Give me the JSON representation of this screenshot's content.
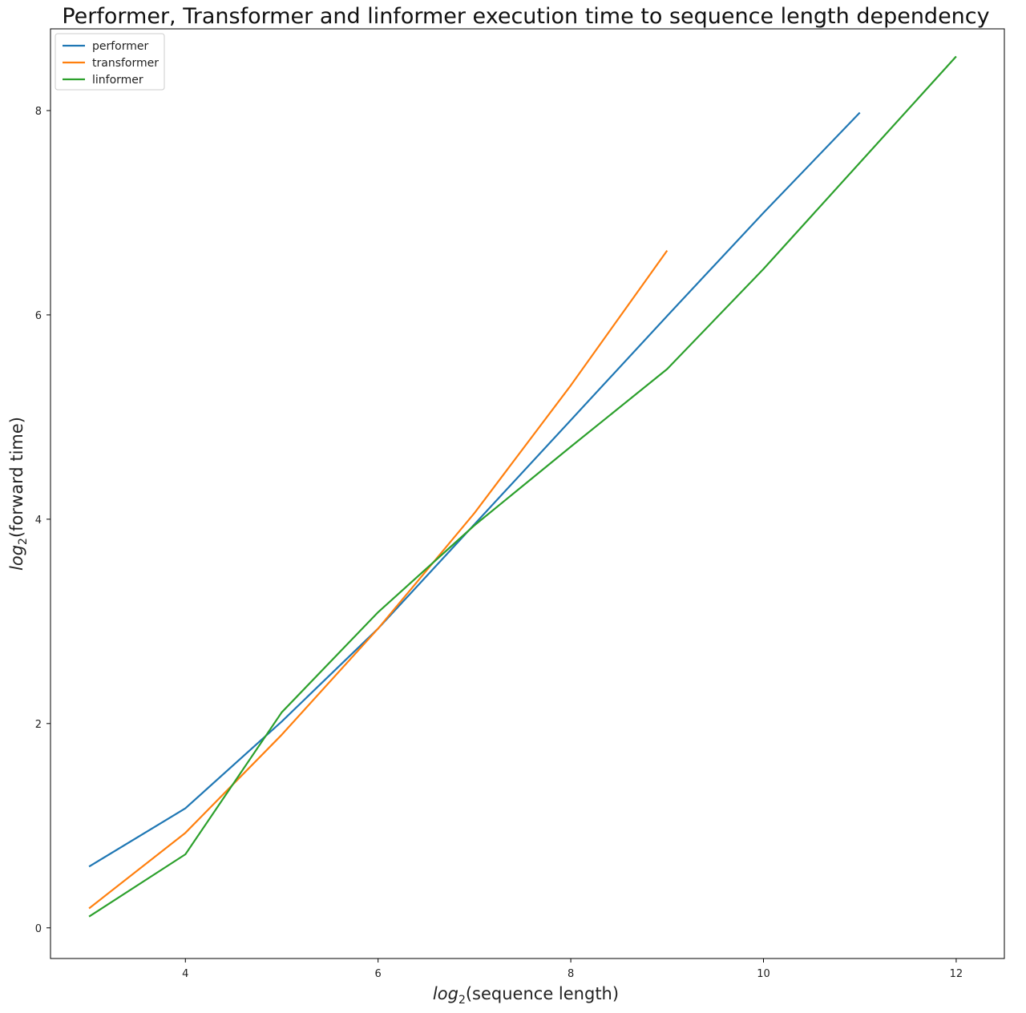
{
  "chart_data": {
    "type": "line",
    "title": "Performer, Transformer and linformer execution time to sequence length dependency",
    "xlabel": "log2(sequence length)",
    "ylabel": "log2(forward time)",
    "xlabel_parts": {
      "base": "log",
      "sub": "2",
      "rest": "(sequence length)"
    },
    "ylabel_parts": {
      "base": "log",
      "sub": "2",
      "rest": "(forward time)"
    },
    "xlim": [
      2.6,
      12.5
    ],
    "ylim": [
      -0.3,
      8.8
    ],
    "x_ticks": [
      4,
      6,
      8,
      10,
      12
    ],
    "y_ticks": [
      0,
      2,
      4,
      6,
      8
    ],
    "x_tick_labels": [
      "4",
      "6",
      "8",
      "10",
      "12"
    ],
    "y_tick_labels": [
      "0",
      "2",
      "4",
      "6",
      "8"
    ],
    "grid": false,
    "legend_position": "top-left",
    "series": [
      {
        "name": "performer",
        "color": "#1f77b4",
        "x": [
          3,
          4,
          5,
          6,
          7,
          8,
          9,
          10,
          11
        ],
        "y": [
          0.6,
          1.17,
          2.02,
          2.93,
          3.95,
          4.97,
          5.99,
          7.0,
          7.98
        ]
      },
      {
        "name": "transformer",
        "color": "#ff7f0e",
        "x": [
          3,
          4,
          5,
          6,
          7,
          8,
          9
        ],
        "y": [
          0.19,
          0.93,
          1.89,
          2.93,
          4.06,
          5.31,
          6.63
        ]
      },
      {
        "name": "linformer",
        "color": "#2ca02c",
        "x": [
          3,
          4,
          5,
          6,
          7,
          8,
          9,
          10,
          11,
          12
        ],
        "y": [
          0.11,
          0.72,
          2.11,
          3.09,
          3.94,
          4.71,
          5.47,
          6.45,
          7.49,
          8.53
        ]
      }
    ]
  }
}
